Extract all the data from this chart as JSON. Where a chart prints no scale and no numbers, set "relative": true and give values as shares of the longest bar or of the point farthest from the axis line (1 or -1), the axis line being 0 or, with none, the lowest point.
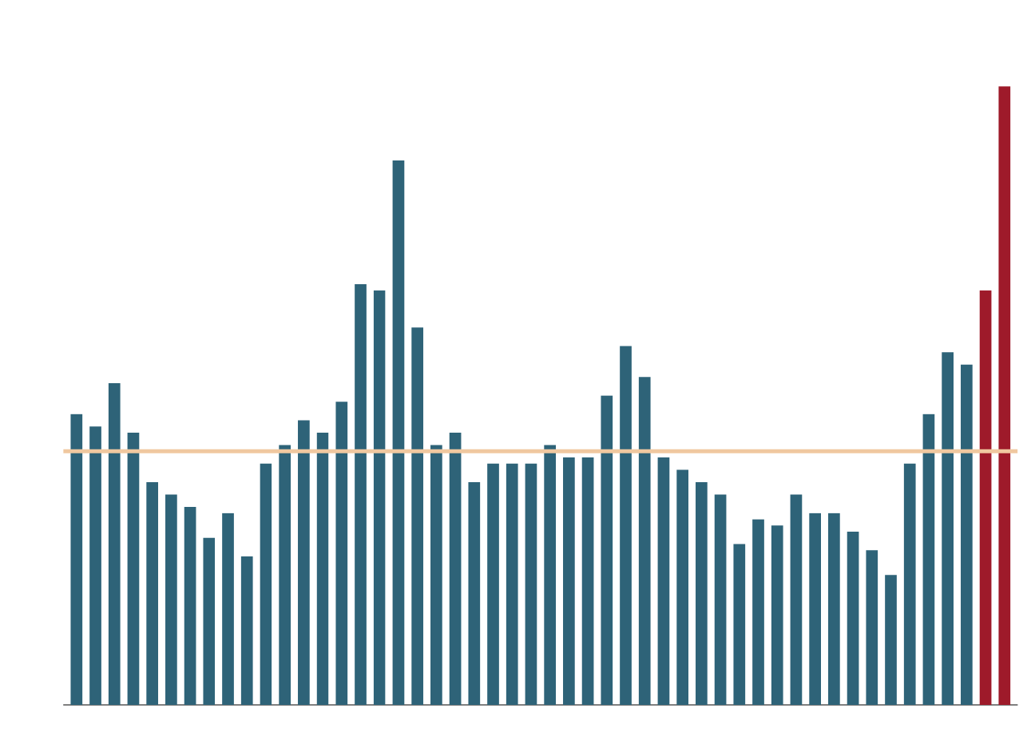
{
  "chart_data": {
    "type": "bar",
    "relative": true,
    "categories": [
      null,
      null,
      null,
      null,
      null,
      null,
      null,
      null,
      null,
      null,
      null,
      null,
      null,
      null,
      null,
      null,
      null,
      null,
      null,
      null,
      null,
      null,
      null,
      null,
      null,
      null,
      null,
      null,
      null,
      null,
      null,
      null,
      null,
      null,
      null,
      null,
      null,
      null,
      null,
      null,
      null,
      null,
      null,
      null,
      null,
      null,
      null,
      null,
      null,
      null
    ],
    "values": [
      0.47,
      0.45,
      0.52,
      0.44,
      0.36,
      0.34,
      0.32,
      0.27,
      0.31,
      0.24,
      0.39,
      0.42,
      0.46,
      0.44,
      0.49,
      0.68,
      0.67,
      0.88,
      0.61,
      0.42,
      0.44,
      0.36,
      0.39,
      0.39,
      0.39,
      0.42,
      0.4,
      0.4,
      0.5,
      0.58,
      0.53,
      0.4,
      0.38,
      0.36,
      0.34,
      0.26,
      0.3,
      0.29,
      0.34,
      0.31,
      0.31,
      0.28,
      0.25,
      0.21,
      0.39,
      0.47,
      0.57,
      0.55,
      0.67,
      1
    ],
    "colors": [
      "#2e6378",
      "#2e6378",
      "#2e6378",
      "#2e6378",
      "#2e6378",
      "#2e6378",
      "#2e6378",
      "#2e6378",
      "#2e6378",
      "#2e6378",
      "#2e6378",
      "#2e6378",
      "#2e6378",
      "#2e6378",
      "#2e6378",
      "#2e6378",
      "#2e6378",
      "#2e6378",
      "#2e6378",
      "#2e6378",
      "#2e6378",
      "#2e6378",
      "#2e6378",
      "#2e6378",
      "#2e6378",
      "#2e6378",
      "#2e6378",
      "#2e6378",
      "#2e6378",
      "#2e6378",
      "#2e6378",
      "#2e6378",
      "#2e6378",
      "#2e6378",
      "#2e6378",
      "#2e6378",
      "#2e6378",
      "#2e6378",
      "#2e6378",
      "#2e6378",
      "#2e6378",
      "#2e6378",
      "#2e6378",
      "#2e6378",
      "#2e6378",
      "#2e6378",
      "#2e6378",
      "#2e6378",
      "#9e1a2a",
      "#9e1a2a"
    ],
    "ref_lines": [
      {
        "axis": "y",
        "value": 0.41,
        "color": "#f0c8a0"
      }
    ]
  }
}
